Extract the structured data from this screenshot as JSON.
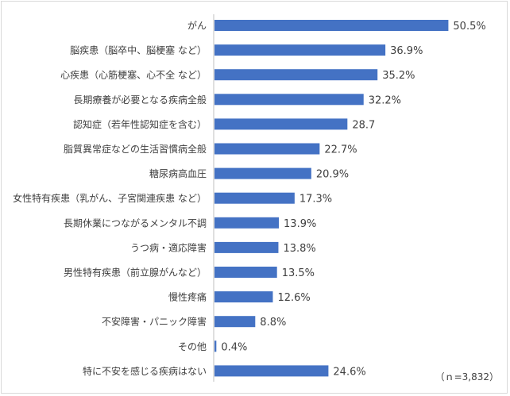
{
  "chart_data": {
    "type": "bar",
    "orientation": "horizontal",
    "categories": [
      "がん",
      "脳疾患（脳卒中、脳梗塞 など）",
      "心疾患（心筋梗塞、心不全 など）",
      "長期療養が必要となる疾病全般",
      "認知症（若年性認知症を含む）",
      "脂質異常症などの生活習慣病全般",
      "糖尿病高血圧",
      "女性特有疾患（乳がん、子宮関連疾患 など）",
      "長期休業につながるメンタル不調",
      "うつ病・適応障害",
      "男性特有疾患（前立腺がんなど）",
      "慢性疼痛",
      "不安障害・パニック障害",
      "その他",
      "特に不安を感じる疾病はない"
    ],
    "values": [
      50.5,
      36.9,
      35.2,
      32.2,
      28.7,
      22.7,
      20.9,
      17.3,
      13.9,
      13.8,
      13.5,
      12.6,
      8.8,
      0.4,
      24.6
    ],
    "value_labels": [
      "50.5%",
      "36.9%",
      "35.2%",
      "32.2%",
      "28.7",
      "22.7%",
      "20.9%",
      "17.3%",
      "13.9%",
      "13.8%",
      "13.5%",
      "12.6%",
      "8.8%",
      "0.4%",
      "24.6%"
    ],
    "note": "（ｎ=3,832）",
    "bar_color": "#4472c4",
    "grid": false,
    "legend": "none"
  }
}
